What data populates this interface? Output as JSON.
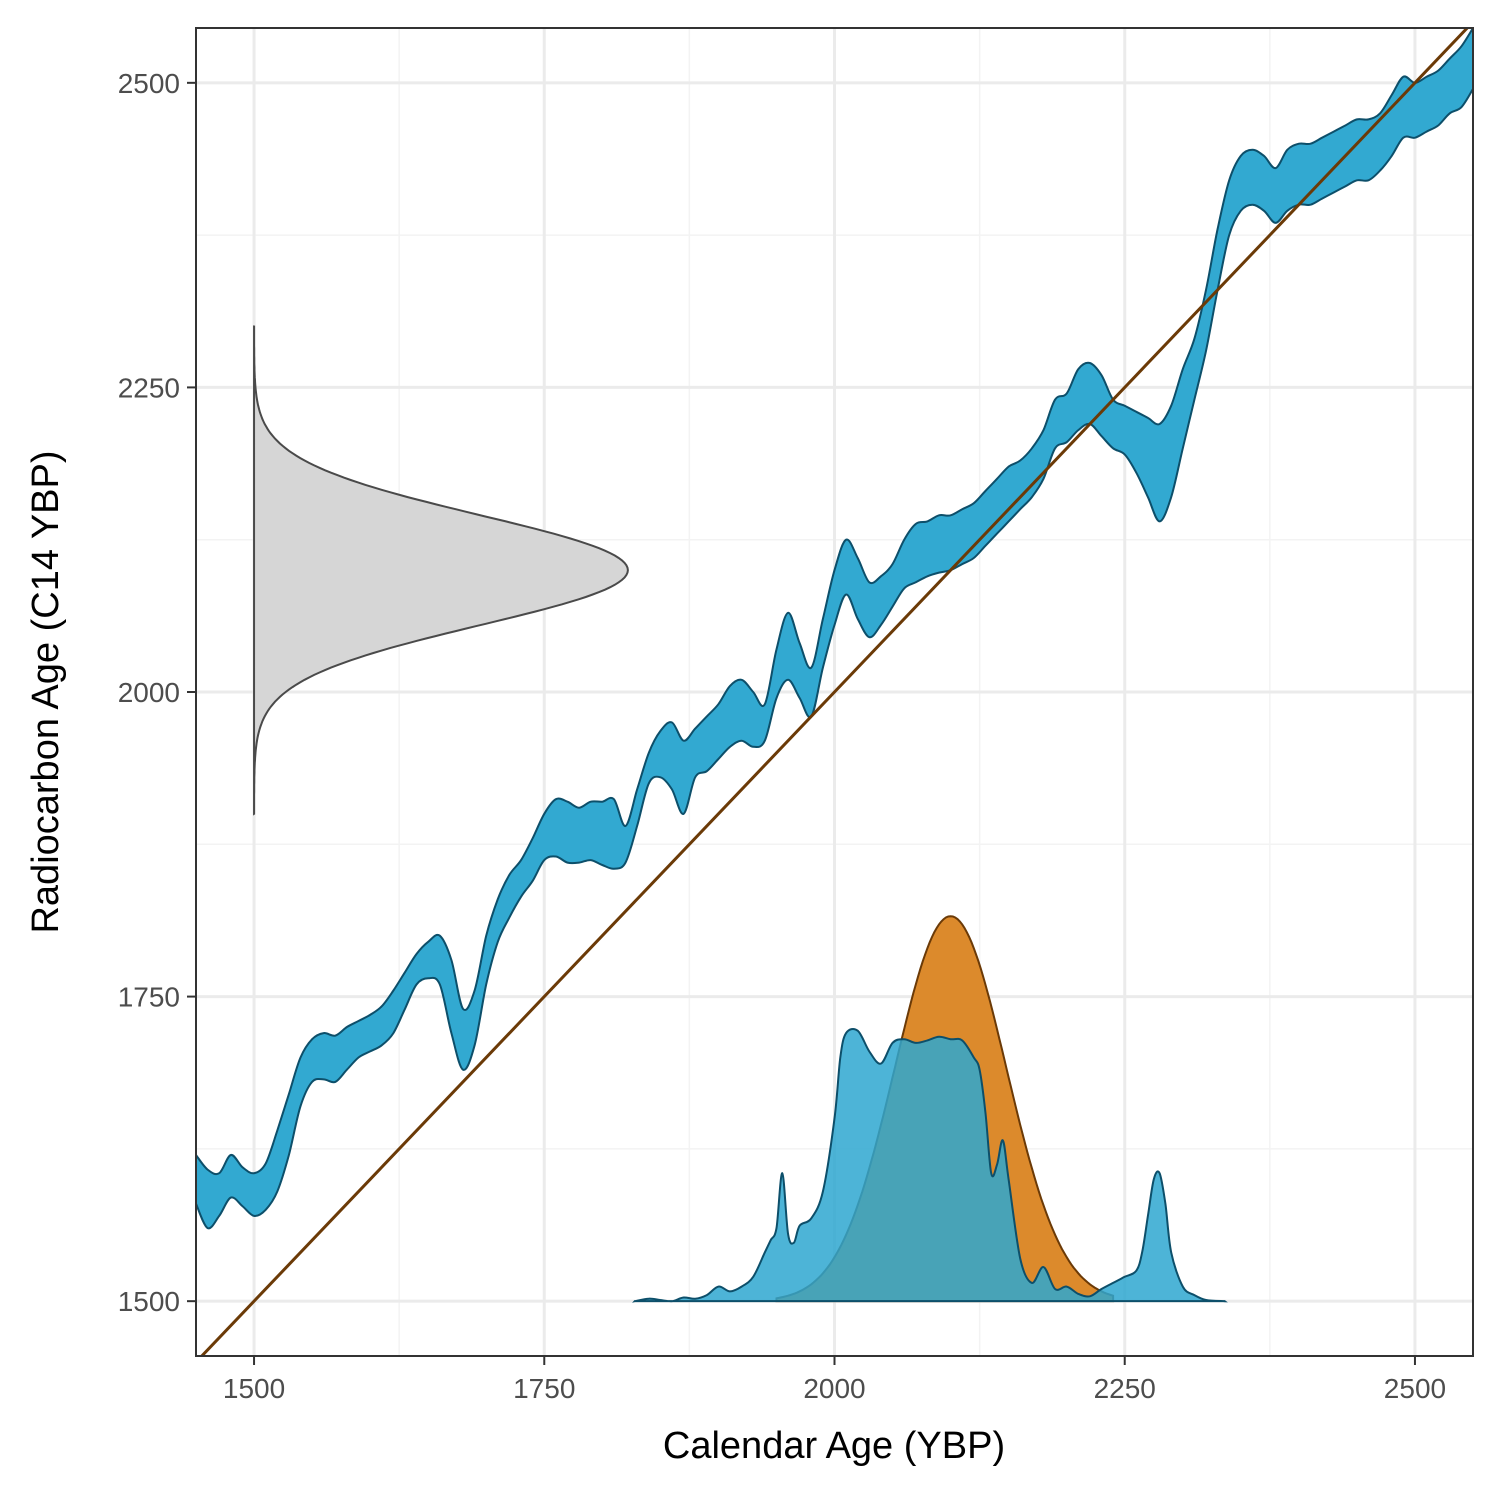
{
  "chart_data": {
    "type": "area",
    "xlabel": "Calendar Age (YBP)",
    "ylabel": "Radiocarbon Age (C14 YBP)",
    "xlim": [
      1450,
      2550
    ],
    "ylim": [
      1455,
      2545
    ],
    "x_ticks": [
      1500,
      1750,
      2000,
      2250,
      2500
    ],
    "y_ticks": [
      1500,
      1750,
      2000,
      2250,
      2500
    ],
    "grid": true,
    "legend": "none",
    "colors": {
      "calibration_band": "#2ea7d0",
      "calibration_outline": "#0d4f6a",
      "identity_line": "#6b3a07",
      "radiocarbon_density": "#d6d6d6",
      "radiocarbon_outline": "#4a4a4a",
      "posterior_density": "#dc8a2c",
      "posterior_outline": "#6b3a07",
      "calendar_density": "#2ea7d0",
      "overlap": "#2a8fa0"
    },
    "calibration_band": {
      "x": [
        1450,
        1460,
        1470,
        1480,
        1490,
        1500,
        1510,
        1520,
        1530,
        1540,
        1550,
        1560,
        1570,
        1580,
        1590,
        1600,
        1610,
        1620,
        1630,
        1640,
        1650,
        1660,
        1670,
        1680,
        1690,
        1700,
        1710,
        1720,
        1730,
        1740,
        1750,
        1760,
        1770,
        1780,
        1790,
        1800,
        1810,
        1820,
        1830,
        1840,
        1850,
        1860,
        1870,
        1880,
        1890,
        1900,
        1910,
        1920,
        1930,
        1940,
        1950,
        1960,
        1970,
        1980,
        1990,
        2000,
        2010,
        2020,
        2030,
        2040,
        2050,
        2060,
        2070,
        2080,
        2090,
        2100,
        2110,
        2120,
        2130,
        2140,
        2150,
        2160,
        2170,
        2180,
        2190,
        2200,
        2210,
        2220,
        2230,
        2240,
        2250,
        2260,
        2270,
        2280,
        2290,
        2300,
        2310,
        2320,
        2330,
        2340,
        2350,
        2360,
        2370,
        2380,
        2390,
        2400,
        2410,
        2420,
        2430,
        2440,
        2450,
        2460,
        2470,
        2480,
        2490,
        2500,
        2510,
        2520,
        2530,
        2540,
        2550
      ],
      "upper": [
        1620,
        1608,
        1605,
        1620,
        1610,
        1605,
        1613,
        1640,
        1670,
        1700,
        1715,
        1720,
        1718,
        1725,
        1730,
        1735,
        1742,
        1755,
        1770,
        1785,
        1795,
        1800,
        1780,
        1740,
        1755,
        1800,
        1830,
        1850,
        1862,
        1880,
        1900,
        1912,
        1910,
        1905,
        1910,
        1910,
        1912,
        1890,
        1920,
        1950,
        1968,
        1975,
        1960,
        1970,
        1980,
        1990,
        2005,
        2010,
        2000,
        1990,
        2035,
        2065,
        2040,
        2020,
        2060,
        2100,
        2125,
        2110,
        2090,
        2095,
        2105,
        2125,
        2138,
        2140,
        2145,
        2145,
        2150,
        2155,
        2165,
        2175,
        2185,
        2190,
        2200,
        2215,
        2240,
        2245,
        2265,
        2270,
        2260,
        2240,
        2235,
        2230,
        2225,
        2220,
        2235,
        2265,
        2290,
        2330,
        2380,
        2420,
        2440,
        2445,
        2440,
        2430,
        2445,
        2450,
        2450,
        2455,
        2460,
        2465,
        2470,
        2470,
        2475,
        2490,
        2505,
        2500,
        2505,
        2510,
        2520,
        2530,
        2545
      ],
      "lower": [
        1580,
        1560,
        1570,
        1585,
        1578,
        1570,
        1575,
        1590,
        1620,
        1660,
        1680,
        1682,
        1680,
        1690,
        1700,
        1705,
        1710,
        1720,
        1740,
        1760,
        1765,
        1760,
        1720,
        1690,
        1710,
        1760,
        1795,
        1815,
        1832,
        1845,
        1862,
        1865,
        1860,
        1860,
        1862,
        1858,
        1855,
        1860,
        1890,
        1925,
        1930,
        1920,
        1900,
        1930,
        1935,
        1945,
        1955,
        1960,
        1955,
        1960,
        1995,
        2010,
        1995,
        1980,
        2020,
        2055,
        2080,
        2060,
        2045,
        2055,
        2070,
        2085,
        2090,
        2095,
        2098,
        2100,
        2105,
        2110,
        2120,
        2130,
        2140,
        2150,
        2160,
        2175,
        2200,
        2205,
        2215,
        2220,
        2210,
        2200,
        2195,
        2180,
        2160,
        2140,
        2160,
        2200,
        2240,
        2280,
        2330,
        2375,
        2395,
        2400,
        2395,
        2385,
        2395,
        2400,
        2400,
        2405,
        2410,
        2415,
        2420,
        2420,
        2428,
        2440,
        2455,
        2455,
        2460,
        2465,
        2475,
        2480,
        2495
      ]
    },
    "identity_line": {
      "x": [
        1450,
        2550
      ],
      "y": [
        1450,
        2550
      ]
    },
    "radiocarbon_density": {
      "x_baseline": 1500,
      "mean": 2100,
      "sd": 45,
      "y_range": [
        1900,
        2300
      ],
      "peak_x": 1822
    },
    "posterior_density": {
      "y_baseline": 1500,
      "mean": 2100,
      "sd": 48,
      "x_range": [
        1950,
        2240
      ],
      "peak_y": 1816
    },
    "calendar_density": {
      "y_baseline": 1500,
      "x": [
        1828,
        1840,
        1850,
        1860,
        1870,
        1880,
        1890,
        1900,
        1910,
        1920,
        1930,
        1940,
        1945,
        1950,
        1955,
        1960,
        1965,
        1970,
        1980,
        1990,
        2000,
        2005,
        2010,
        2020,
        2030,
        2040,
        2050,
        2060,
        2070,
        2080,
        2090,
        2100,
        2110,
        2120,
        2125,
        2130,
        2135,
        2140,
        2145,
        2150,
        2160,
        2170,
        2180,
        2190,
        2200,
        2210,
        2220,
        2230,
        2240,
        2250,
        2260,
        2265,
        2270,
        2275,
        2280,
        2285,
        2290,
        2300,
        2310,
        2320,
        2336
      ],
      "y": [
        1500,
        1502,
        1501,
        1500,
        1503,
        1502,
        1505,
        1512,
        1508,
        1512,
        1520,
        1540,
        1550,
        1560,
        1605,
        1555,
        1548,
        1562,
        1568,
        1590,
        1650,
        1700,
        1720,
        1722,
        1705,
        1695,
        1712,
        1715,
        1712,
        1714,
        1717,
        1715,
        1714,
        1700,
        1690,
        1655,
        1605,
        1612,
        1632,
        1600,
        1535,
        1515,
        1528,
        1510,
        1512,
        1506,
        1504,
        1510,
        1515,
        1520,
        1525,
        1540,
        1570,
        1600,
        1605,
        1580,
        1540,
        1512,
        1505,
        1501,
        1500
      ]
    }
  }
}
